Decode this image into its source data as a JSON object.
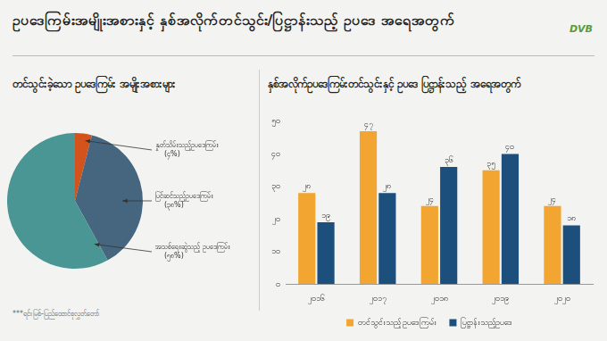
{
  "page": {
    "title": "ဥပဒေကြမ်းအမျိုးအစားနှင့် နှစ်အလိုက်တင်သွင်း/ပြဋ္ဌာန်းသည့် ဥပဒေ အရေအတွက်",
    "logo": "DVB",
    "note": "***ရင်းမြစ်-ပြည်ထောင်စုလွှတ်တော်"
  },
  "chart_data": [
    {
      "type": "pie",
      "title": "တင်သွင်းခဲ့သော ဥပဒေကြမ်း အမျိုးအစားများ",
      "categories": [
        "နှုတ်သိမ်းသည့်ဥပဒေကြမ်း",
        "ပြင်ဆင်သည့်ဥပဒေကြမ်း",
        "အသစ်ရေးဆွဲသည့် ဥပဒေကြမ်း"
      ],
      "values": [
        4,
        38,
        58
      ],
      "value_labels": [
        "(၄%)",
        "(၃၈%)",
        "(၅၈%)"
      ],
      "colors": [
        "#d4521c",
        "#46667f",
        "#4a9694"
      ],
      "data_labels": true
    },
    {
      "type": "bar",
      "title": "နှစ်အလိုက်ဥပဒေကြမ်းတင်သွင်းနှင့် ဥပဒေ ပြဋ္ဌာန်းသည့် အရေအတွက်",
      "categories": [
        "၂၀၁၆",
        "၂၀၁၇",
        "၂၀၁၈",
        "၂၀၁၉",
        "၂၀၂၀"
      ],
      "series": [
        {
          "name": "တင်သွင်းသည့် ဥပဒေကြမ်း",
          "color": "#f2a531",
          "values": [
            28,
            47,
            24,
            35,
            24
          ],
          "value_labels": [
            "၂၈",
            "၄၇",
            "၂၄",
            "၃၅",
            "၂၄"
          ]
        },
        {
          "name": "ပြဋ္ဌာန်းသည့်ဥပဒေ",
          "color": "#1d4f7c",
          "values": [
            19,
            28,
            36,
            40,
            18
          ],
          "value_labels": [
            "၁၉",
            "၂၈",
            "၃၆",
            "၄၀",
            "၁၈"
          ]
        }
      ],
      "ylim": [
        0,
        50
      ],
      "yticks": [
        {
          "value": 0,
          "label": "၀"
        },
        {
          "value": 10,
          "label": "၁၀"
        },
        {
          "value": 20,
          "label": "၂၀"
        },
        {
          "value": 30,
          "label": "၃၀"
        },
        {
          "value": 40,
          "label": "၄၀"
        },
        {
          "value": 50,
          "label": "၅၀"
        }
      ],
      "grid": false,
      "legend": "bottom",
      "data_labels": true
    }
  ]
}
